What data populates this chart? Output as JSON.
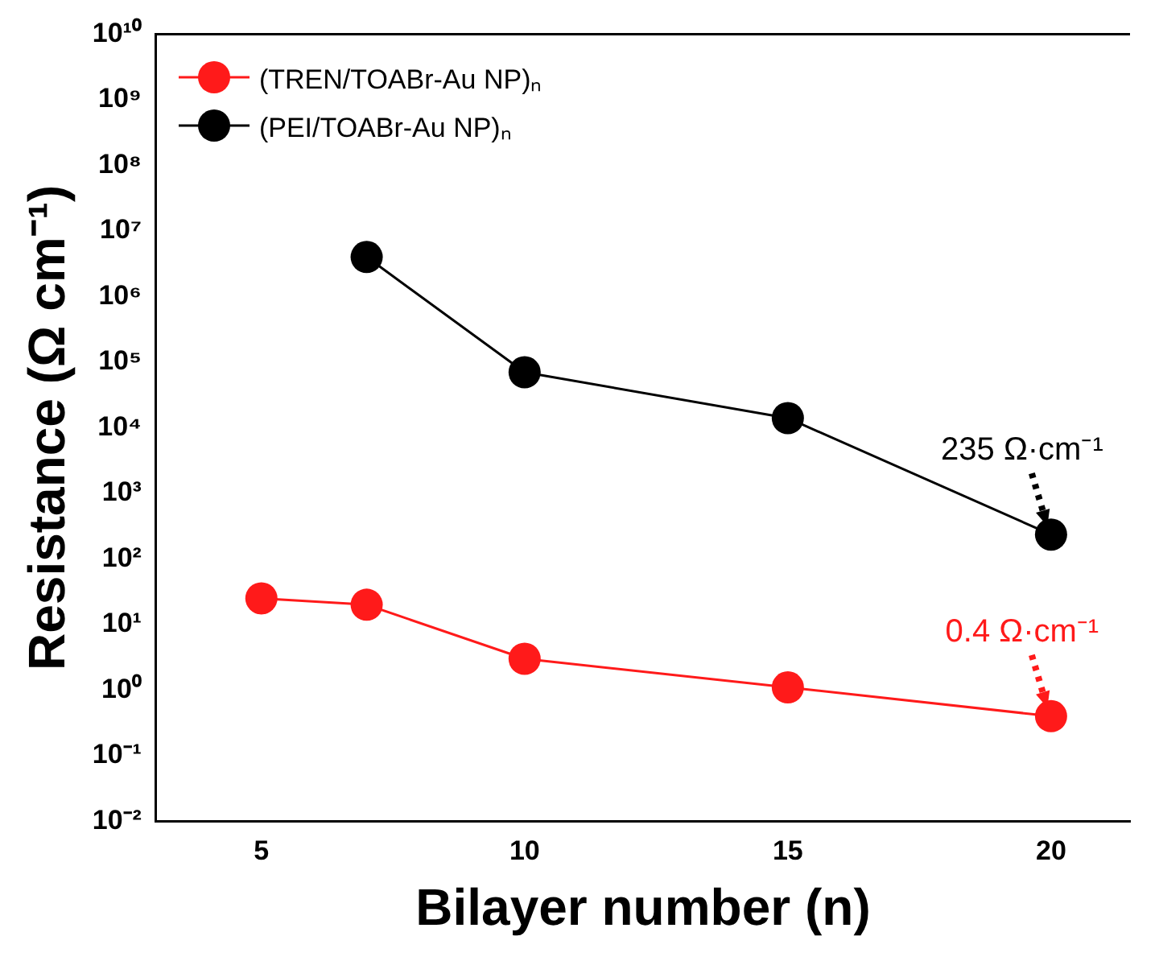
{
  "chart_data": {
    "type": "line",
    "xlabel": "Bilayer number (n)",
    "ylabel": "Resistance (Ω cm⁻¹)",
    "log": "y",
    "grid": false,
    "legend": "top left",
    "marker": "circle",
    "line_style": "solid",
    "xlim": [
      3,
      21.5
    ],
    "xticks": [
      5,
      10,
      15,
      20
    ],
    "ylim": [
      0.01,
      10000000000
    ],
    "yticks": [
      {
        "value": 0.01,
        "label": "10⁻²"
      },
      {
        "value": 0.1,
        "label": "10⁻¹"
      },
      {
        "value": 1,
        "label": "10⁰"
      },
      {
        "value": 10,
        "label": "10¹"
      },
      {
        "value": 100,
        "label": "10²"
      },
      {
        "value": 1000,
        "label": "10³"
      },
      {
        "value": 10000,
        "label": "10⁴"
      },
      {
        "value": 100000,
        "label": "10⁵"
      },
      {
        "value": 1000000,
        "label": "10⁶"
      },
      {
        "value": 10000000,
        "label": "10⁷"
      },
      {
        "value": 100000000,
        "label": "10⁸"
      },
      {
        "value": 1000000000,
        "label": "10⁹"
      },
      {
        "value": 10000000000,
        "label": "10¹⁰"
      }
    ],
    "series": [
      {
        "name": "(TREN/TOABr-Au NP)ₙ",
        "color": "#ff1a1a",
        "x": [
          5,
          7,
          10,
          15,
          20
        ],
        "values": [
          25,
          20,
          3,
          1.1,
          0.4
        ]
      },
      {
        "name": "(PEI/TOABr-Au NP)ₙ",
        "color": "#000000",
        "x": [
          7,
          10,
          15,
          20
        ],
        "values": [
          4000000,
          70000,
          14000,
          235
        ]
      }
    ],
    "annotations": [
      {
        "text": "235 Ω·cm⁻¹",
        "x": 20,
        "y": 235
      },
      {
        "text": "0.4 Ω·cm⁻¹",
        "x": 20,
        "y": 0.4
      }
    ]
  }
}
